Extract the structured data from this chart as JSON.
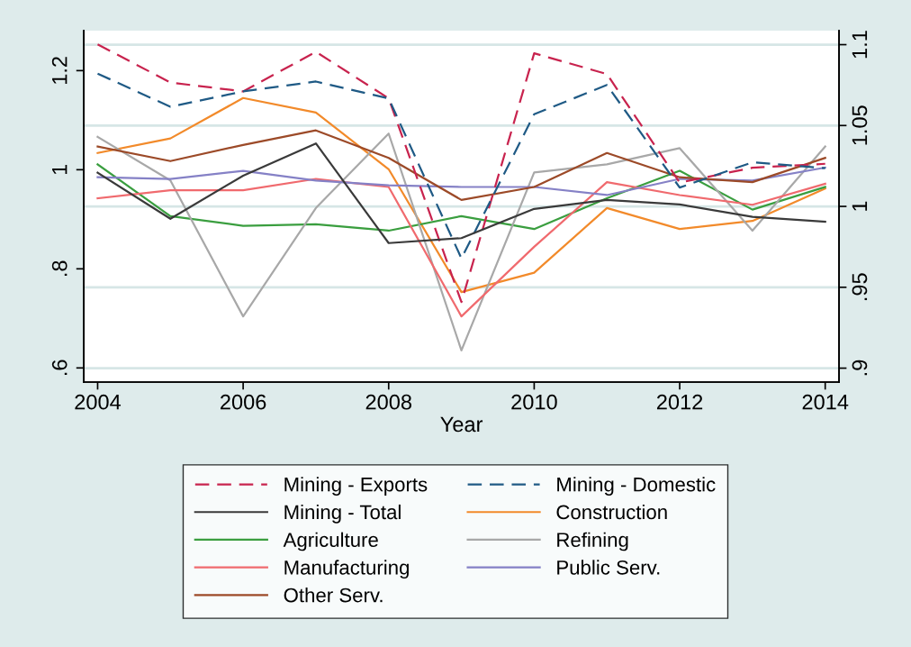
{
  "chart_data": {
    "type": "line",
    "xlabel": "Year",
    "x": [
      2004,
      2005,
      2006,
      2007,
      2008,
      2009,
      2010,
      2011,
      2012,
      2013,
      2014
    ],
    "xlim": [
      2003.81,
      2014.19
    ],
    "xticks": [
      2004,
      2006,
      2008,
      2010,
      2012,
      2014
    ],
    "ylim": [
      0.5715,
      1.2805
    ],
    "yticks": [
      {
        "value": 0.6,
        "label": ".6"
      },
      {
        "value": 0.8,
        "label": ".8"
      },
      1,
      1.2
    ],
    "y2lim": [
      0.8914,
      1.1086
    ],
    "y2ticks": [
      {
        "value": 0.9,
        "label": ".9"
      },
      {
        "value": 0.95,
        "label": ".95"
      },
      1,
      1.05,
      1.1
    ],
    "grid": "y2",
    "legend": "bottom",
    "marker": "none",
    "series": [
      {
        "name": "Mining - Exports",
        "color": "#c8234e",
        "line_style": "dashed",
        "values": [
          1.253,
          1.176,
          1.158,
          1.238,
          1.144,
          0.733,
          1.235,
          1.193,
          0.974,
          1.004,
          1.012
        ]
      },
      {
        "name": "Mining - Domestic",
        "color": "#1f5a85",
        "line_style": "dashed",
        "values": [
          1.194,
          1.127,
          1.158,
          1.178,
          1.144,
          0.821,
          1.112,
          1.171,
          0.964,
          1.015,
          1.003
        ]
      },
      {
        "name": "Mining - Total",
        "color": "#3a3a3a",
        "line_style": "solid",
        "values": [
          0.994,
          0.901,
          0.988,
          1.053,
          0.852,
          0.862,
          0.921,
          0.939,
          0.93,
          0.905,
          0.895
        ]
      },
      {
        "name": "Construction",
        "color": "#f28a2a",
        "line_style": "solid",
        "axis": "y2",
        "values": [
          1.033,
          1.042,
          1.067,
          1.058,
          1.023,
          0.947,
          0.959,
          0.999,
          0.986,
          0.991,
          1.011
        ]
      },
      {
        "name": "Agriculture",
        "color": "#3a9e3f",
        "line_style": "solid",
        "axis": "y2",
        "values": [
          1.026,
          0.994,
          0.988,
          0.989,
          0.985,
          0.994,
          0.986,
          1.005,
          1.022,
          0.998,
          1.012
        ]
      },
      {
        "name": "Refining",
        "color": "#a8a8a8",
        "line_style": "solid",
        "axis": "y2",
        "values": [
          1.043,
          1.016,
          0.932,
          0.999,
          1.045,
          0.911,
          1.021,
          1.026,
          1.036,
          0.985,
          1.037
        ]
      },
      {
        "name": "Manufacturing",
        "color": "#f06a6e",
        "line_style": "solid",
        "axis": "y2",
        "values": [
          1.005,
          1.01,
          1.01,
          1.017,
          1.012,
          0.932,
          0.975,
          1.015,
          1.007,
          1.001,
          1.014
        ]
      },
      {
        "name": "Public Serv.",
        "color": "#8581c6",
        "line_style": "solid",
        "axis": "y2",
        "values": [
          1.018,
          1.017,
          1.022,
          1.016,
          1.013,
          1.012,
          1.012,
          1.007,
          1.017,
          1.016,
          1.024
        ]
      },
      {
        "name": "Other Serv.",
        "color": "#9c4a28",
        "line_style": "solid",
        "axis": "y2",
        "values": [
          1.037,
          1.028,
          1.038,
          1.047,
          1.03,
          1.004,
          1.012,
          1.033,
          1.018,
          1.015,
          1.03
        ]
      }
    ]
  }
}
